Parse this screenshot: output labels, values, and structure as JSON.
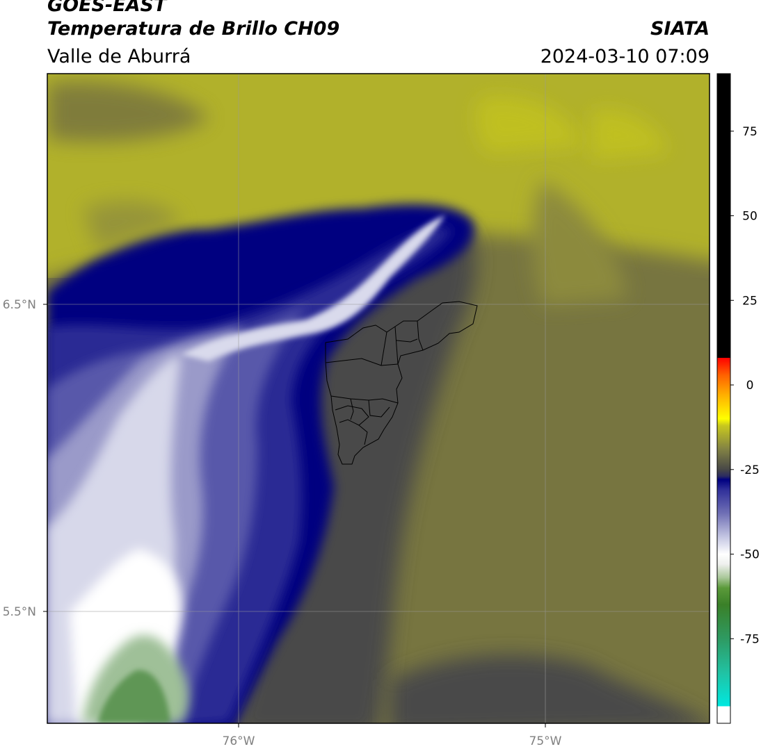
{
  "header": {
    "line1": "GOES-EAST",
    "line2": "Temperatura de Brillo CH09",
    "subtitle": "Valle de Aburrá",
    "brand": "SIATA",
    "datetime": "2024-03-10 07:09"
  },
  "axes": {
    "lon_ticks": [
      "76°W",
      "75°W"
    ],
    "lat_ticks": [
      "6.5°N",
      "5.5°N"
    ],
    "lon_range": [
      -76.62,
      -74.46
    ],
    "lat_range": [
      5.13,
      7.25
    ]
  },
  "colorbar": {
    "ticks": [
      "75",
      "50",
      "25",
      "0",
      "-25",
      "-50",
      "-75"
    ],
    "range": [
      -100,
      92
    ],
    "stops": [
      {
        "v": -100,
        "c": "#ffffff"
      },
      {
        "v": -95,
        "c": "#ffffff"
      },
      {
        "v": -95,
        "c": "#00e8e0"
      },
      {
        "v": -85,
        "c": "#21c2a3"
      },
      {
        "v": -75,
        "c": "#2e9a62"
      },
      {
        "v": -65,
        "c": "#3a8028"
      },
      {
        "v": -60,
        "c": "#5b9a3a"
      },
      {
        "v": -57,
        "c": "#a9c799"
      },
      {
        "v": -53,
        "c": "#eef0ee"
      },
      {
        "v": -50,
        "c": "#ffffff"
      },
      {
        "v": -45,
        "c": "#c5c7e3"
      },
      {
        "v": -38,
        "c": "#7070b5"
      },
      {
        "v": -31,
        "c": "#30309a"
      },
      {
        "v": -28,
        "c": "#000080"
      },
      {
        "v": -27,
        "c": "#2a2a62"
      },
      {
        "v": -25,
        "c": "#474747"
      },
      {
        "v": -19,
        "c": "#828244"
      },
      {
        "v": -12,
        "c": "#c8c81e"
      },
      {
        "v": -10,
        "c": "#ffff00"
      },
      {
        "v": -3,
        "c": "#ffb000"
      },
      {
        "v": 3,
        "c": "#ff6000"
      },
      {
        "v": 8,
        "c": "#ff0000"
      },
      {
        "v": 8,
        "c": "#000000"
      },
      {
        "v": 92,
        "c": "#000000"
      }
    ]
  },
  "colors": {
    "clear_north": "#b1b12b",
    "warm_low": "#777440",
    "valley_gray": "#4a4a48",
    "cloud_edge": "#000080",
    "cloud_core": "#ffffff",
    "cold_top": "#5e9654"
  }
}
